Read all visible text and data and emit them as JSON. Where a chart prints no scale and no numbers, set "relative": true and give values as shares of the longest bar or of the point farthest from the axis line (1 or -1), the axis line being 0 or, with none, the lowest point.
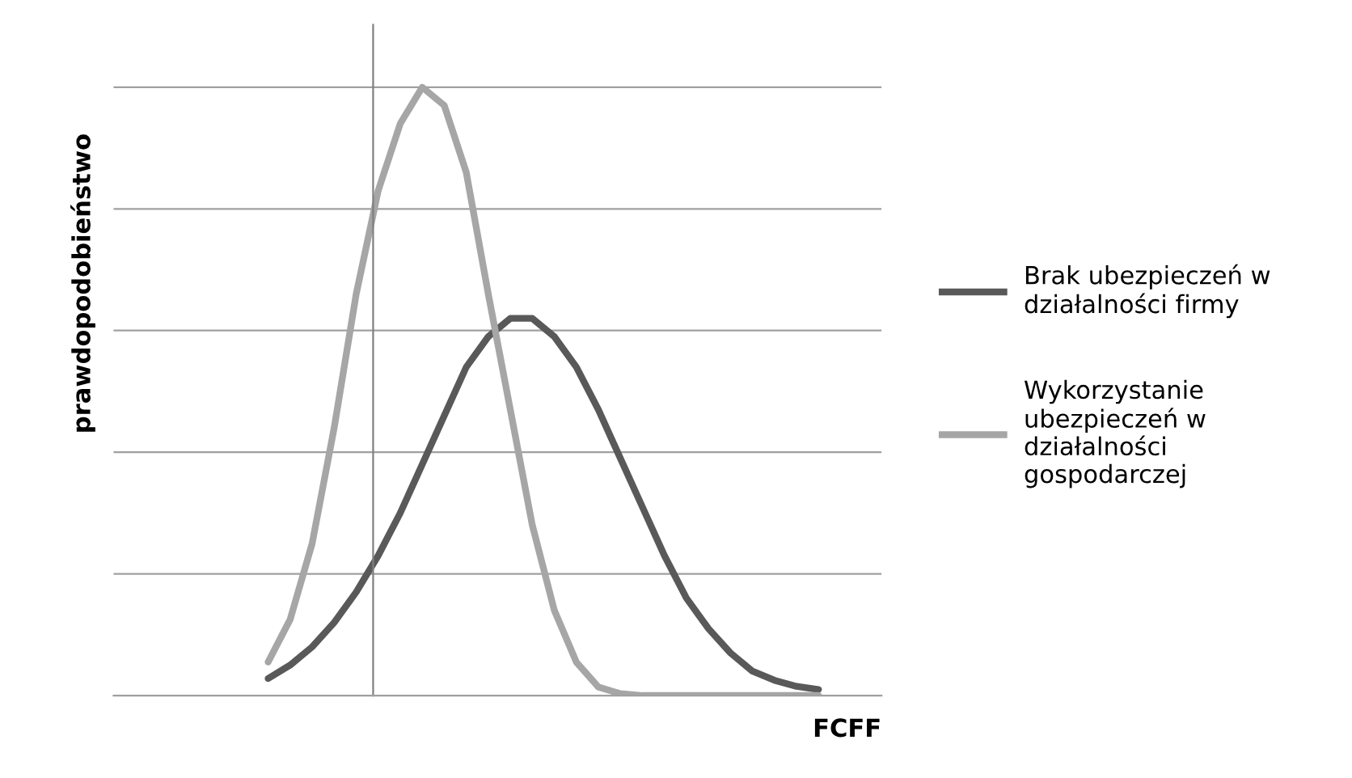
{
  "chart_data": {
    "type": "line",
    "relative": true,
    "xlabel": "FCFF",
    "annotations": [
      "prawdopodobieństwo"
    ],
    "categories": [
      null,
      null,
      null,
      null,
      null,
      null,
      null,
      null,
      null,
      null,
      null,
      null,
      null,
      null,
      null,
      null,
      null,
      null,
      null,
      null,
      null,
      null,
      null,
      null,
      null,
      null
    ],
    "series": [
      {
        "name": "Brak ubezpieczeń w działalności firmy",
        "color": "#595959",
        "values": [
          0.028,
          0.05,
          0.08,
          0.12,
          0.17,
          0.23,
          0.3,
          0.38,
          0.46,
          0.54,
          0.59,
          0.62,
          0.62,
          0.59,
          0.54,
          0.47,
          0.39,
          0.31,
          0.23,
          0.16,
          0.11,
          0.07,
          0.04,
          0.025,
          0.015,
          0.01
        ]
      },
      {
        "name": "Wykorzystanie ubezpieczeń w działalności gospodarczej",
        "color": "#a6a6a6",
        "values": [
          0.055,
          0.125,
          0.25,
          0.44,
          0.66,
          0.83,
          0.94,
          1.0,
          0.97,
          0.86,
          0.66,
          0.47,
          0.28,
          0.14,
          0.055,
          0.014,
          0.003,
          0,
          0,
          0,
          0,
          0,
          0,
          0,
          0,
          0
        ]
      }
    ],
    "grid": "y",
    "legend": "right",
    "tick_labels": false
  }
}
